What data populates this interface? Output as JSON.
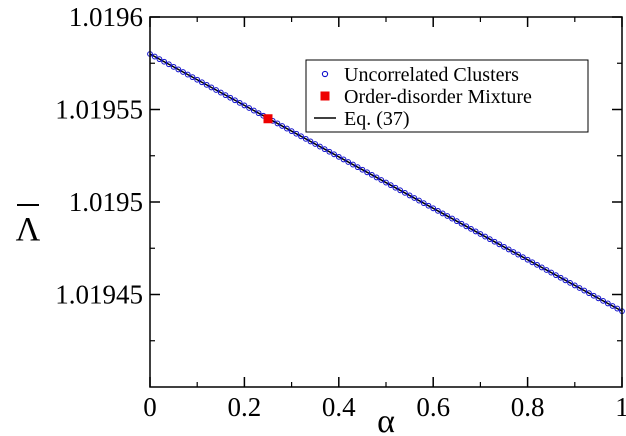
{
  "chart_data": {
    "type": "line",
    "title": "",
    "xlabel": "α",
    "ylabel": "Λ",
    "ylabel_overbar": true,
    "xlim": [
      0,
      1
    ],
    "ylim": [
      1.0194,
      1.0196
    ],
    "x_ticks": [
      0,
      0.2,
      0.4,
      0.6,
      0.8,
      1
    ],
    "x_tick_labels": [
      "0",
      "0.2",
      "0.4",
      "0.6",
      "0.8",
      "1"
    ],
    "y_ticks": [
      1.01945,
      1.0195,
      1.01955,
      1.0196
    ],
    "y_tick_labels": [
      "1.01945",
      "1.0195",
      "1.01955",
      "1.0196"
    ],
    "grid": false,
    "legend_position": "top-right",
    "series": [
      {
        "name": "Uncorrelated Clusters",
        "kind": "scatter",
        "marker": "open-circle",
        "color": "#1010cc",
        "x_start": 0,
        "x_end": 1,
        "x_step": 0.01,
        "y_at_x_start": 1.01958,
        "y_at_x_end": 1.019441
      },
      {
        "name": "Order-disorder Mixture",
        "kind": "scatter",
        "marker": "filled-square",
        "color": "#ee0000",
        "x": [
          0.25
        ],
        "y": [
          1.019545
        ]
      },
      {
        "name": "Eq. (37)",
        "kind": "line",
        "color": "#000000",
        "x": [
          0,
          1
        ],
        "y": [
          1.01958,
          1.019441
        ]
      }
    ]
  }
}
